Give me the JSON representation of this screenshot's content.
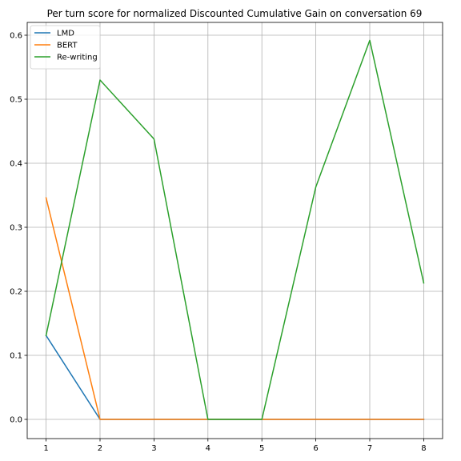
{
  "chart_data": {
    "type": "line",
    "title": "Per turn score for normalized Discounted Cumulative Gain on conversation 69",
    "xlabel": "",
    "ylabel": "",
    "x": [
      1,
      2,
      3,
      4,
      5,
      6,
      7,
      8
    ],
    "xticks": [
      "1",
      "2",
      "3",
      "4",
      "5",
      "6",
      "7",
      "8"
    ],
    "xlim": [
      0.65,
      8.35
    ],
    "yticks": [
      "0.0",
      "0.1",
      "0.2",
      "0.3",
      "0.4",
      "0.5",
      "0.6"
    ],
    "ytick_values": [
      0.0,
      0.1,
      0.2,
      0.3,
      0.4,
      0.5,
      0.6
    ],
    "ylim": [
      -0.03,
      0.62
    ],
    "grid": true,
    "legend_position": "top-left",
    "series": [
      {
        "name": "LMD",
        "color": "#1f77b4",
        "values": [
          0.131,
          0.0,
          0.0,
          0.0,
          0.0,
          0.0,
          0.0,
          0.0
        ]
      },
      {
        "name": "BERT",
        "color": "#ff7f0e",
        "values": [
          0.346,
          0.0,
          0.0,
          0.0,
          0.0,
          0.0,
          0.0,
          0.0
        ]
      },
      {
        "name": "Re-writing",
        "color": "#2ca02c",
        "values": [
          0.131,
          0.53,
          0.438,
          0.0,
          0.0,
          0.363,
          0.592,
          0.213
        ]
      }
    ]
  }
}
